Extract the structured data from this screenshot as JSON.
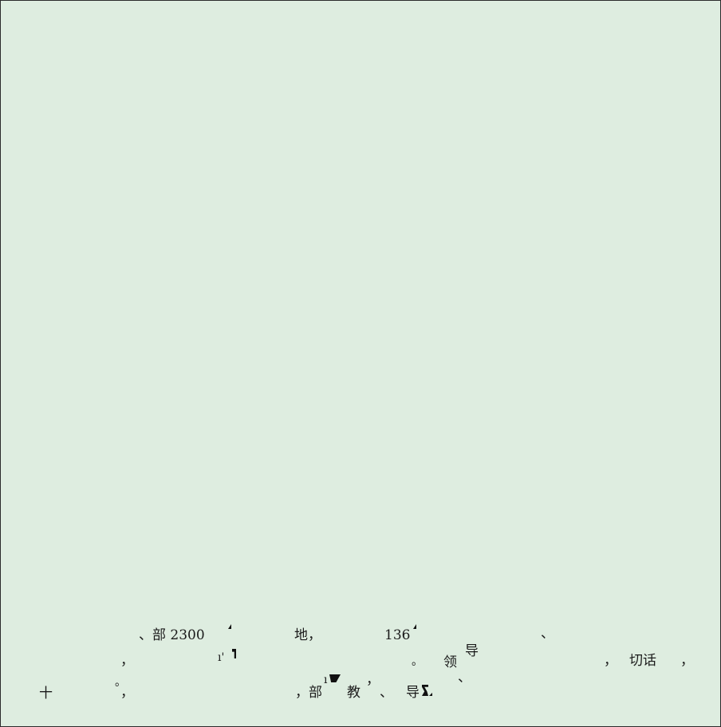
{
  "document": {
    "background_color": "#deede0",
    "border_color": "#2b2b2b",
    "fragments": {
      "line1": {
        "a": "、部 2300",
        "b": "地，",
        "c": "136",
        "d": "、"
      },
      "line2": {
        "a": "，",
        "b": "ı'",
        "c": "。",
        "d": "领",
        "e": "导",
        "f": "，",
        "g": "切话",
        "h": "，"
      },
      "line3": {
        "a": "。",
        "b": "ı",
        "c": "，",
        "d": "、"
      },
      "line4": {
        "a": "十",
        "b": "，",
        "c": "，部",
        "d": "教",
        "e": "、",
        "f": "导"
      }
    }
  }
}
